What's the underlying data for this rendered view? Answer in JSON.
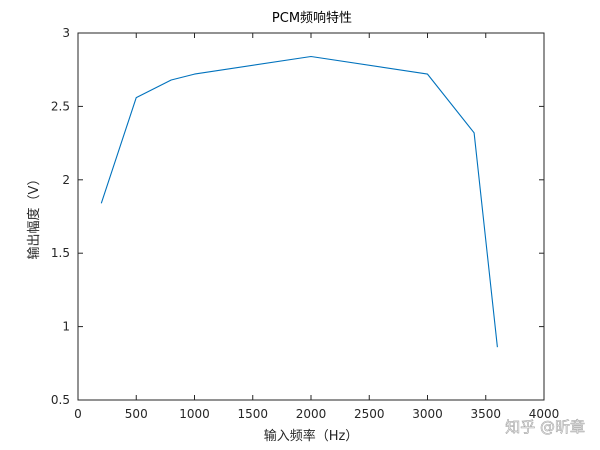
{
  "chart_data": {
    "type": "line",
    "title": "PCM频响特性",
    "xlabel": "输入频率（Hz）",
    "ylabel": "输出幅度（V）",
    "xlim": [
      0,
      4000
    ],
    "ylim": [
      0.5,
      3
    ],
    "xticks": [
      0,
      500,
      1000,
      1500,
      2000,
      2500,
      3000,
      3500,
      4000
    ],
    "yticks": [
      0.5,
      1,
      1.5,
      2,
      2.5,
      3
    ],
    "grid": false,
    "series": [
      {
        "color": "#0072bd",
        "x": [
          200,
          500,
          800,
          1000,
          2000,
          3000,
          3400,
          3600
        ],
        "y": [
          1.84,
          2.56,
          2.68,
          2.72,
          2.84,
          2.72,
          2.32,
          0.86
        ]
      }
    ]
  },
  "watermark": {
    "text": "知乎 @昕章"
  }
}
